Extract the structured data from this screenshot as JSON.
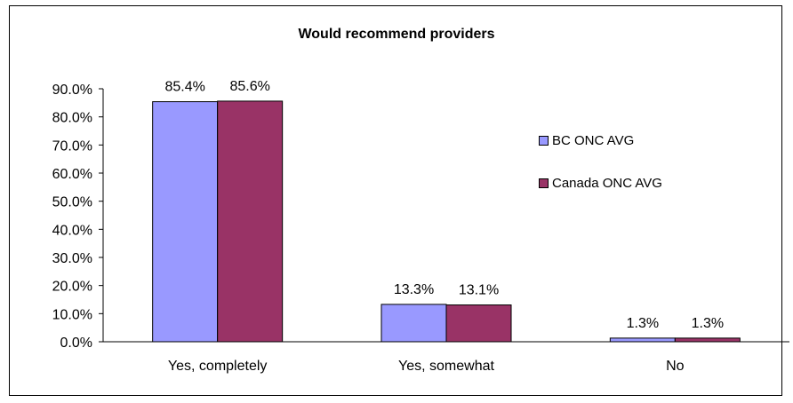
{
  "chart_data": {
    "type": "bar",
    "title": "Would recommend providers",
    "xlabel": "",
    "ylabel": "",
    "categories": [
      "Yes, completely",
      "Yes, somewhat",
      "No"
    ],
    "series": [
      {
        "name": "BC ONC AVG",
        "values": [
          85.4,
          13.3,
          1.3
        ],
        "labels": [
          "85.4%",
          "13.3%",
          "1.3%"
        ],
        "color": "#9999FF"
      },
      {
        "name": "Canada ONC AVG",
        "values": [
          85.6,
          13.1,
          1.3
        ],
        "labels": [
          "85.6%",
          "13.1%",
          "1.3%"
        ],
        "color": "#993366"
      }
    ],
    "ylim": [
      0,
      90
    ],
    "yticks": [
      0,
      10,
      20,
      30,
      40,
      50,
      60,
      70,
      80,
      90
    ],
    "ytick_labels": [
      "0.0%",
      "10.0%",
      "20.0%",
      "30.0%",
      "40.0%",
      "50.0%",
      "60.0%",
      "70.0%",
      "80.0%",
      "90.0%"
    ],
    "grid": false,
    "legend_position": "right"
  }
}
